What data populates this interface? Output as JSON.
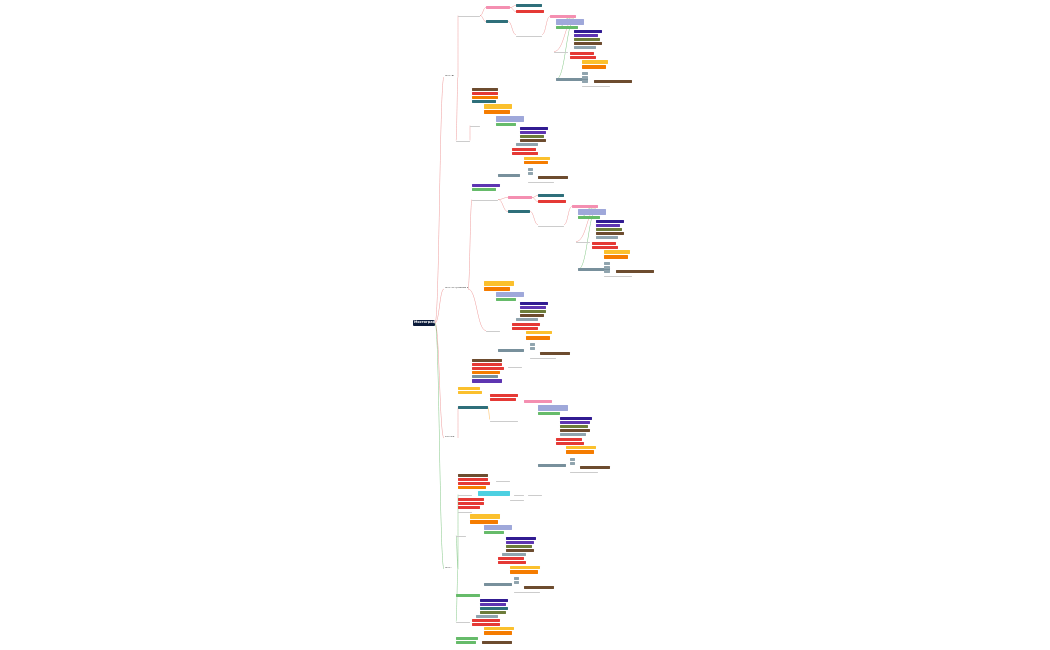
{
  "root": {
    "label": "Мостография"
  },
  "colors": {
    "pink": "#f48fb1",
    "teal": "#2e6f7a",
    "red": "#e53935",
    "orange": "#f57c00",
    "yellow": "#fbc02d",
    "purple": "#5e35b1",
    "indigo": "#311b92",
    "periwinkle": "#9fa8da",
    "green": "#66bb6a",
    "olive": "#6d7c3a",
    "brown": "#6d4c2f",
    "gray": "#90a4ae",
    "slate": "#78909c",
    "cyan": "#4dd0e1",
    "darkgreen": "#2e7d32",
    "edge_red": "#ef9a9a",
    "edge_green": "#81c784",
    "edge_orange": "#ffb74d"
  },
  "branches": [
    {
      "label": "Мосты"
    },
    {
      "label": "Мостостроение в мире"
    },
    {
      "label": "Россия"
    },
    {
      "label": "Мост"
    }
  ]
}
